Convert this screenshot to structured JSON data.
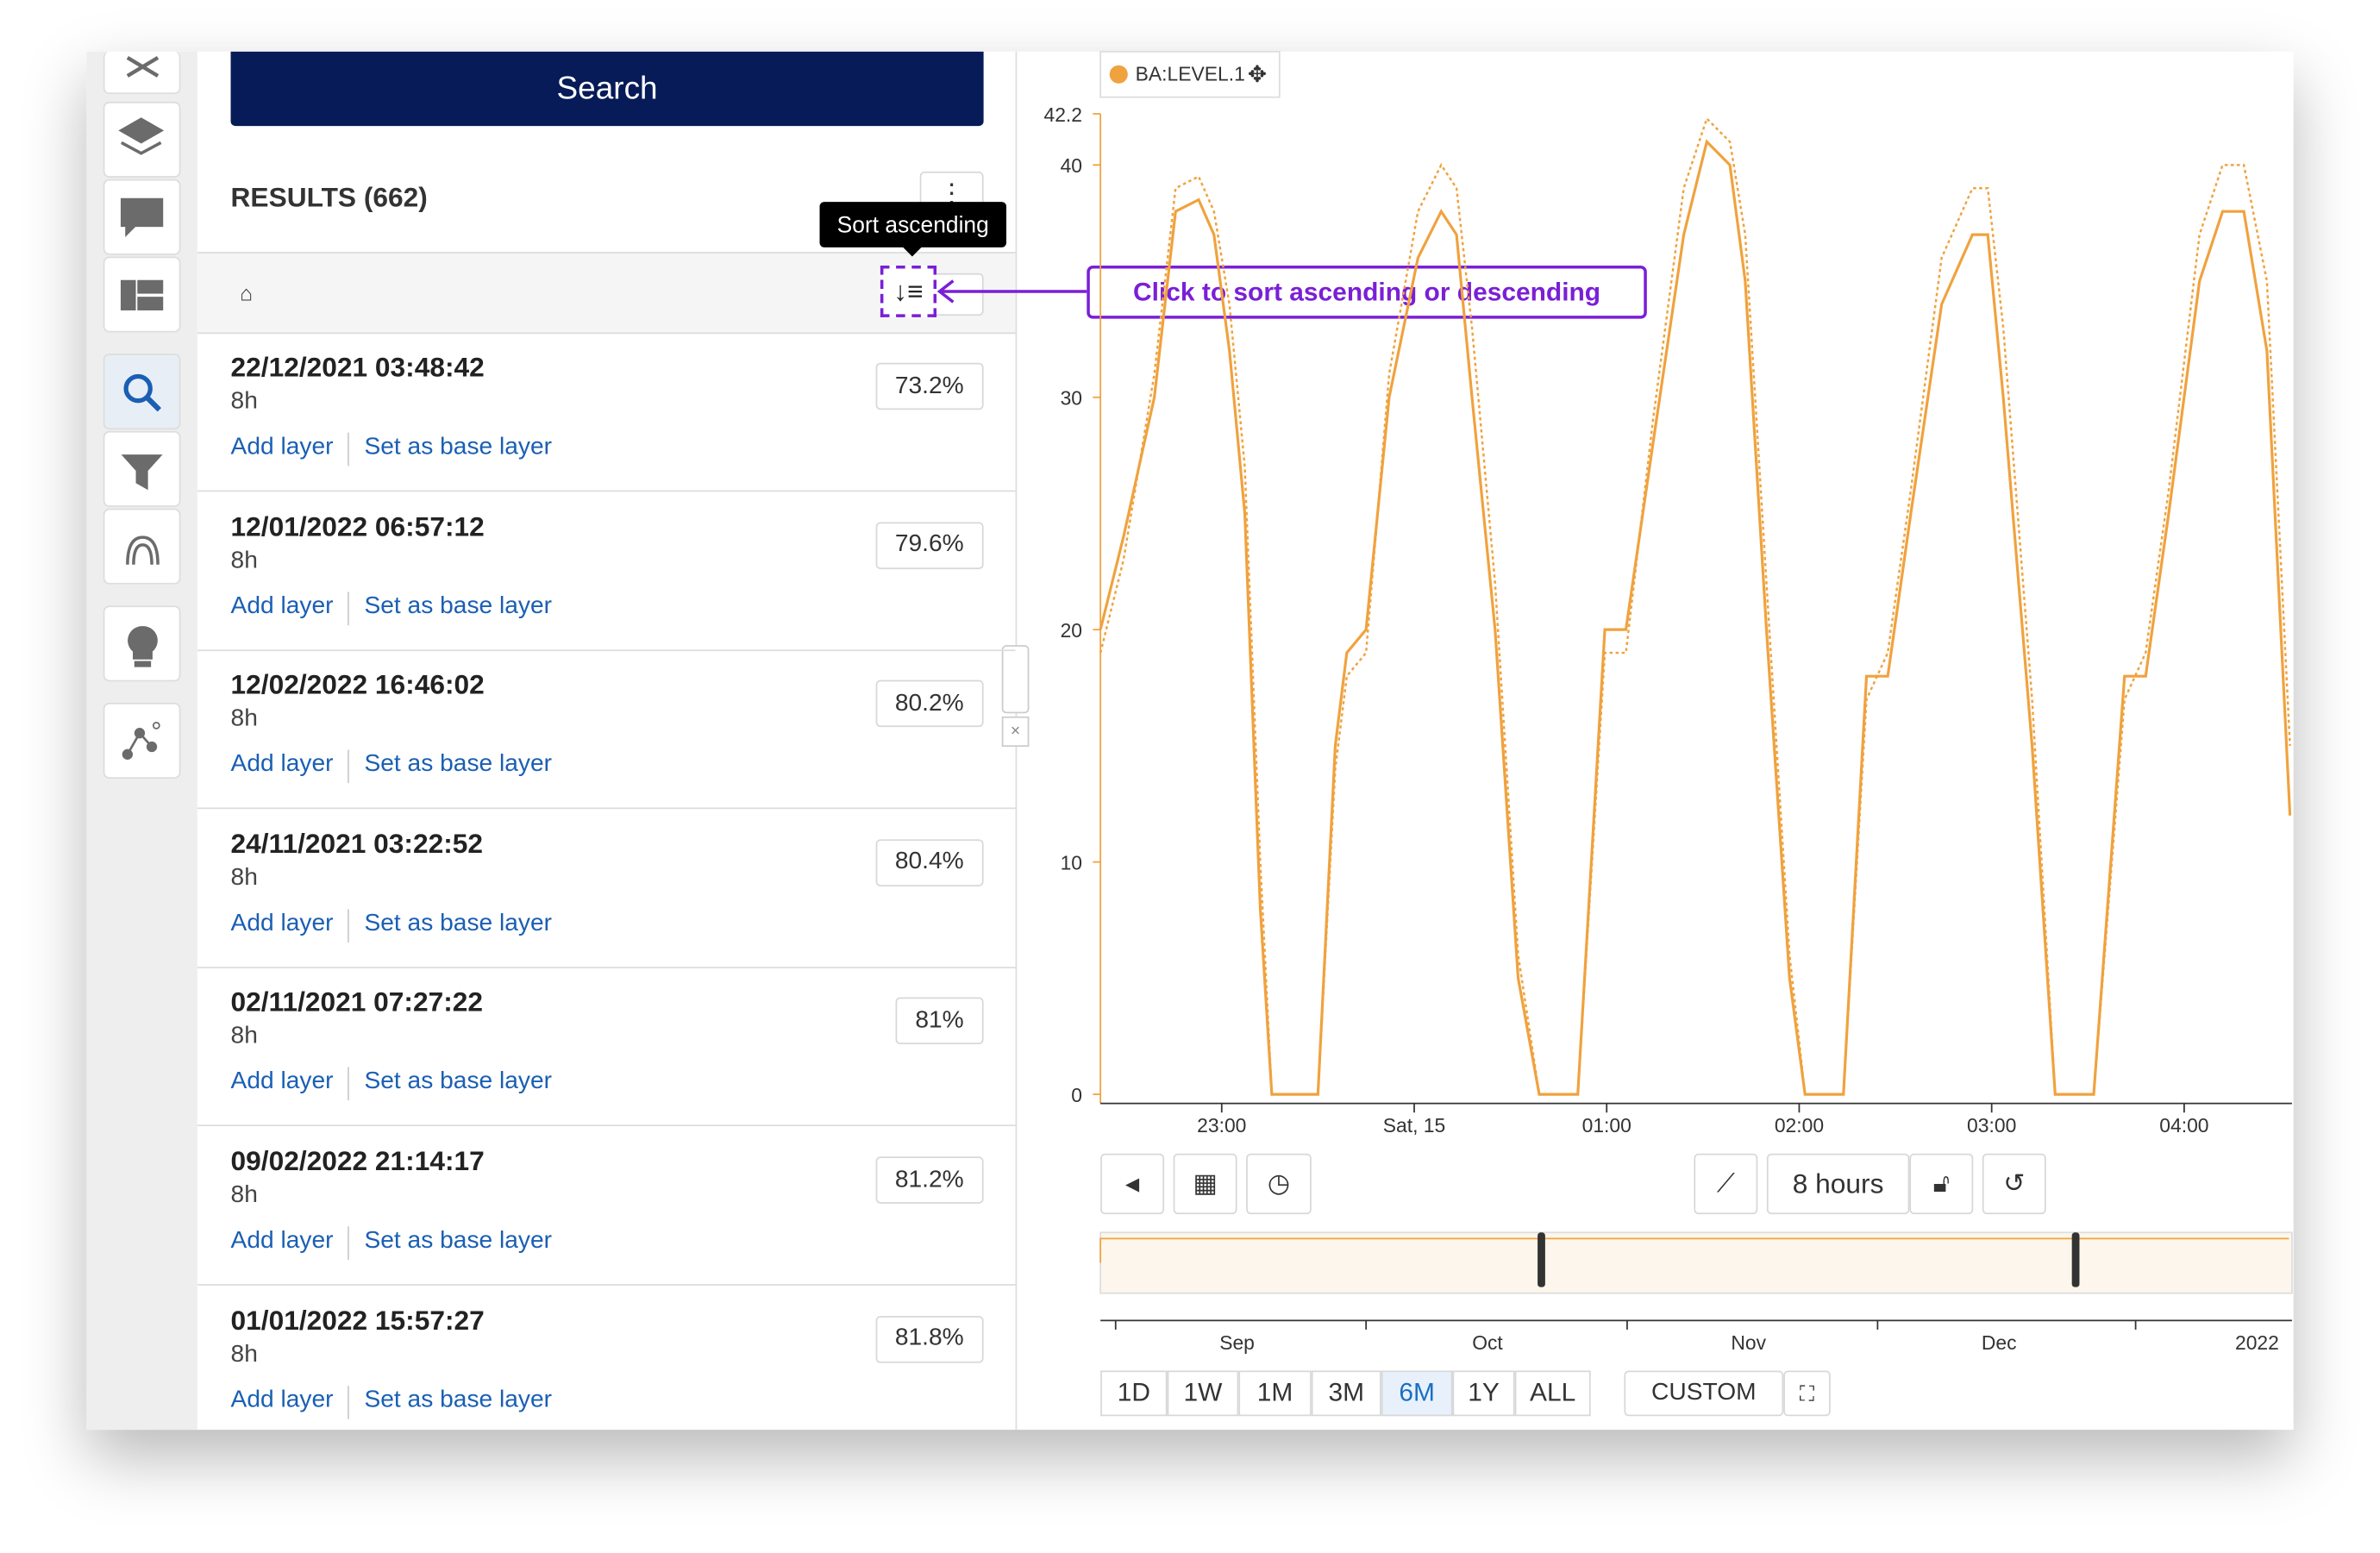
{
  "search_button": "Search",
  "results_header": "RESULTS (662)",
  "tooltip": "Sort ascending",
  "callout": "Click to sort ascending or descending",
  "results": [
    {
      "date": "22/12/2021 03:48:42",
      "duration": "8h",
      "score": "73.2%",
      "actions": [
        "Add layer",
        "Set as base layer"
      ]
    },
    {
      "date": "12/01/2022 06:57:12",
      "duration": "8h",
      "score": "79.6%",
      "actions": [
        "Add layer",
        "Set as base layer"
      ]
    },
    {
      "date": "12/02/2022 16:46:02",
      "duration": "8h",
      "score": "80.2%",
      "actions": [
        "Add layer",
        "Set as base layer"
      ]
    },
    {
      "date": "24/11/2021 03:22:52",
      "duration": "8h",
      "score": "80.4%",
      "actions": [
        "Add layer",
        "Set as base layer"
      ]
    },
    {
      "date": "02/11/2021 07:27:22",
      "duration": "8h",
      "score": "81%",
      "actions": [
        "Add layer",
        "Set as base layer"
      ]
    },
    {
      "date": "09/02/2022 21:14:17",
      "duration": "8h",
      "score": "81.2%",
      "actions": [
        "Add layer",
        "Set as base layer"
      ]
    },
    {
      "date": "01/01/2022 15:57:27",
      "duration": "8h",
      "score": "81.8%",
      "actions": [
        "Add layer",
        "Set as base layer"
      ]
    }
  ],
  "chart_data": {
    "type": "line",
    "x": [
      0.37,
      0.49,
      0.65,
      0.76,
      0.88,
      0.96,
      1.04,
      1.12,
      1.2,
      1.26,
      1.5,
      1.59,
      1.65,
      1.75,
      1.87,
      2.02,
      2.14,
      2.22,
      2.3,
      2.42,
      2.54,
      2.65,
      2.85,
      2.99,
      3.1,
      3.24,
      3.4,
      3.52,
      3.64,
      3.72,
      3.83,
      3.95,
      4.03,
      4.23,
      4.35,
      4.46,
      4.58,
      4.74,
      4.9,
      4.98,
      5.06,
      5.21,
      5.33,
      5.53,
      5.69,
      5.8,
      5.92,
      6.08,
      6.2,
      6.31,
      6.43,
      6.55
    ],
    "series": [
      {
        "name": "BA:LEVEL.1",
        "color": "#f0a23e",
        "values": [
          20,
          24,
          30,
          38,
          38.5,
          37,
          32,
          25,
          8,
          0,
          0,
          15,
          19,
          20,
          30,
          36,
          38,
          37,
          30,
          20,
          5,
          0,
          0,
          20,
          20,
          28,
          37,
          41,
          40,
          35,
          20,
          5,
          0,
          0,
          18,
          18,
          25,
          34,
          37,
          37,
          30,
          15,
          0,
          0,
          18,
          18,
          25,
          35,
          38,
          38,
          32,
          12
        ]
      },
      {
        "color": "#f0a23e",
        "style": "dotted",
        "values": [
          19,
          23,
          31,
          39,
          39.5,
          38,
          34,
          27,
          10,
          0,
          0,
          14,
          18,
          19,
          31,
          38,
          40,
          39,
          33,
          22,
          6,
          0,
          0,
          19,
          19,
          29,
          39,
          42,
          41,
          37,
          22,
          6,
          0,
          0,
          17,
          19,
          26,
          36,
          39,
          39,
          33,
          17,
          0,
          0,
          17,
          19,
          26,
          37,
          40,
          40,
          35,
          15
        ]
      }
    ],
    "xlim": [
      0.37,
      6.56
    ],
    "xticks": [
      {
        "value": 1,
        "label": "23:00"
      },
      {
        "value": 2,
        "label": "Sat, 15"
      },
      {
        "value": 3,
        "label": "01:00"
      },
      {
        "value": 4,
        "label": "02:00"
      },
      {
        "value": 5,
        "label": "03:00"
      },
      {
        "value": 6,
        "label": "04:00"
      }
    ],
    "ylim": [
      0,
      42.2
    ],
    "yticks": [
      0,
      10,
      20,
      30,
      40,
      42.2
    ]
  },
  "controls": {
    "span": "8 hours",
    "navigator_labels": [
      "Sep",
      "Oct",
      "Nov",
      "Dec",
      "2022"
    ],
    "ranges": [
      "1D",
      "1W",
      "1M",
      "3M",
      "6M",
      "1Y",
      "ALL"
    ],
    "custom": "CUSTOM"
  }
}
